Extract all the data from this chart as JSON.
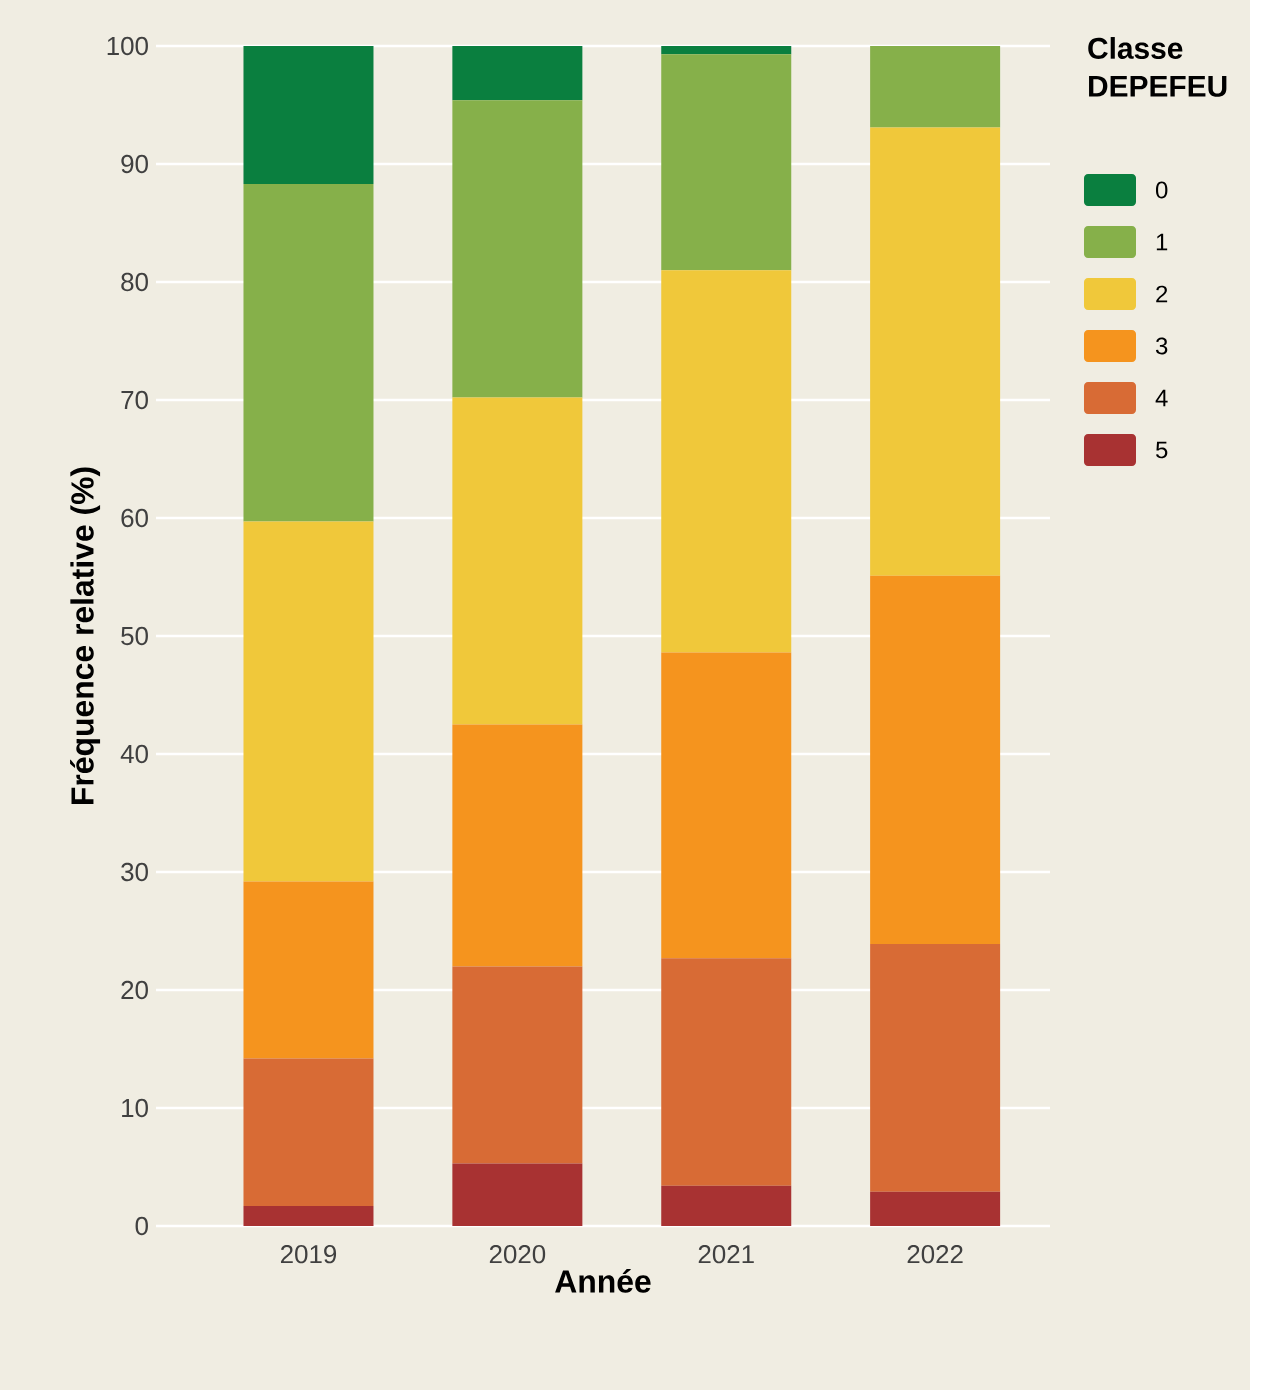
{
  "chart_data": {
    "type": "bar",
    "stacked": true,
    "xlabel": "Année",
    "ylabel": "Fréquence relative (%)",
    "legend_title": "Classe DEPEFEU",
    "legend": "top right",
    "grid": "y",
    "categories": [
      "2019",
      "2020",
      "2021",
      "2022"
    ],
    "ylim": [
      0,
      100
    ],
    "yticks": [
      0,
      10,
      20,
      30,
      40,
      50,
      60,
      70,
      80,
      90,
      100
    ],
    "series": [
      {
        "name": "5",
        "color": "#a83232",
        "values": [
          1.7,
          5.3,
          3.4,
          2.9
        ]
      },
      {
        "name": "4",
        "color": "#d86b35",
        "values": [
          12.5,
          16.7,
          19.3,
          21.0
        ]
      },
      {
        "name": "3",
        "color": "#f5941e",
        "values": [
          15.0,
          20.5,
          25.9,
          31.2
        ]
      },
      {
        "name": "2",
        "color": "#f0c83a",
        "values": [
          30.5,
          27.7,
          32.4,
          38.0
        ]
      },
      {
        "name": "1",
        "color": "#86b04a",
        "values": [
          28.6,
          25.2,
          18.3,
          6.9
        ]
      },
      {
        "name": "0",
        "color": "#0a7f3f",
        "values": [
          11.7,
          4.6,
          0.7,
          0
        ]
      }
    ]
  }
}
